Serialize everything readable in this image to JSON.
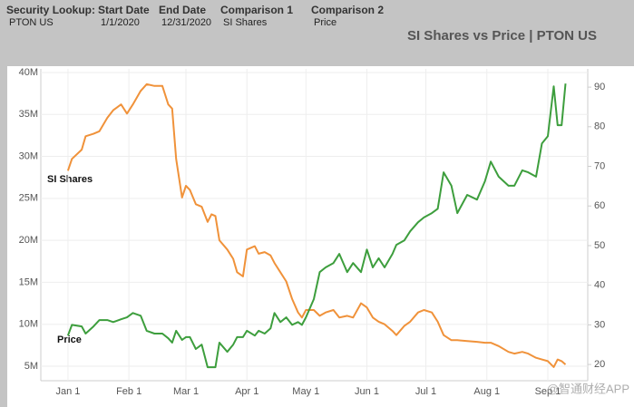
{
  "header": {
    "fields": [
      {
        "label": "Security Lookup:",
        "value": "PTON US"
      },
      {
        "label": "Start Date",
        "value": "1/1/2020"
      },
      {
        "label": "End Date",
        "value": "12/31/2020"
      },
      {
        "label": "Comparison 1",
        "value": "SI Shares"
      },
      {
        "label": "Comparison 2",
        "value": "Price"
      }
    ]
  },
  "chart_data": {
    "type": "line",
    "title": "SI Shares vs Price | PTON US",
    "annotations": [
      "SI Shares",
      "Price"
    ],
    "watermark": "@智通财经APP",
    "grid": true,
    "x": [
      0,
      2,
      7,
      9,
      13,
      16,
      20,
      23,
      27,
      30,
      33,
      37,
      40,
      44,
      48,
      51,
      53,
      55,
      58,
      60,
      62,
      65,
      68,
      71,
      73,
      75,
      77,
      81,
      84,
      86,
      89,
      91,
      95,
      97,
      100,
      103,
      105,
      108,
      111,
      114,
      117,
      119,
      121,
      125,
      128,
      131,
      135,
      138,
      142,
      145,
      149,
      152,
      155,
      158,
      161,
      165,
      167,
      171,
      174,
      178,
      181,
      185,
      188,
      191,
      195,
      198,
      203,
      208,
      212,
      215,
      219,
      224,
      227,
      231,
      234,
      238,
      241,
      244,
      247,
      249,
      251,
      253
    ],
    "xlim": [
      -13.8,
      264.3
    ],
    "xticks": [
      {
        "value": 0,
        "label": "Jan 1"
      },
      {
        "value": 31,
        "label": "Feb 1"
      },
      {
        "value": 60,
        "label": "Mar 1"
      },
      {
        "value": 91,
        "label": "Apr 1"
      },
      {
        "value": 121,
        "label": "May 1"
      },
      {
        "value": 152,
        "label": "Jun 1"
      },
      {
        "value": 182,
        "label": "Jul 1"
      },
      {
        "value": 213,
        "label": "Aug 1"
      },
      {
        "value": 244,
        "label": "Sep 1"
      }
    ],
    "ylim": [
      3.27,
      40.43
    ],
    "yticks": [
      {
        "value": 5,
        "label": "5M"
      },
      {
        "value": 10,
        "label": "10M"
      },
      {
        "value": 15,
        "label": "15M"
      },
      {
        "value": 20,
        "label": "20M"
      },
      {
        "value": 25,
        "label": "25M"
      },
      {
        "value": 30,
        "label": "30M"
      },
      {
        "value": 35,
        "label": "35M"
      },
      {
        "value": 40,
        "label": "40M"
      }
    ],
    "y2lim": [
      15.9,
      94.6
    ],
    "y2ticks": [
      20,
      30,
      40,
      50,
      60,
      70,
      80,
      90
    ],
    "series": [
      {
        "name": "SI Shares",
        "color": "#f0923a",
        "axis": "y",
        "values": [
          28.3,
          29.7,
          30.8,
          32.4,
          32.7,
          33,
          34.6,
          35.5,
          36.2,
          35.1,
          36.2,
          37.8,
          38.6,
          38.4,
          38.4,
          36.2,
          35.7,
          29.7,
          25.1,
          26.5,
          26,
          24.3,
          24,
          22.2,
          23.1,
          22.9,
          20,
          18.9,
          17.8,
          16.2,
          15.7,
          18.9,
          19.3,
          18.4,
          18.6,
          18.2,
          17.3,
          16.2,
          15.1,
          13,
          11.4,
          10.8,
          11.7,
          11.7,
          11,
          11.4,
          11.7,
          10.8,
          11,
          10.8,
          12.5,
          12,
          10.8,
          10.3,
          10,
          9.2,
          8.7,
          9.8,
          10.3,
          11.4,
          11.7,
          11.4,
          10.3,
          8.7,
          8.1,
          8.1,
          8,
          7.9,
          7.8,
          7.8,
          7.4,
          6.7,
          6.5,
          6.7,
          6.5,
          6,
          5.8,
          5.6,
          4.9,
          5.8,
          5.6,
          5.2
        ]
      },
      {
        "name": "Price",
        "color": "#3d9e3d",
        "axis": "y2",
        "values": [
          27.3,
          30,
          29.6,
          27.8,
          29.6,
          31.2,
          31.2,
          30.7,
          31.4,
          31.9,
          33,
          32.3,
          28.5,
          27.8,
          27.8,
          26.6,
          25.5,
          28.5,
          26.2,
          26.9,
          26.9,
          23.9,
          25,
          19.3,
          19.3,
          19.3,
          25.5,
          23.2,
          25,
          26.9,
          26.9,
          28.5,
          27.3,
          28.5,
          27.8,
          29.1,
          33,
          30.7,
          31.9,
          30,
          30.7,
          30,
          31.9,
          36.5,
          43.3,
          44.5,
          45.6,
          47.9,
          43.3,
          45.6,
          43.3,
          49,
          44.5,
          46.8,
          44.5,
          47.9,
          50.2,
          51.3,
          53.6,
          55.9,
          57.1,
          58.2,
          59.3,
          68.5,
          65.1,
          58.2,
          62.8,
          61.6,
          66.2,
          71.2,
          67.4,
          65.1,
          65.1,
          69,
          68.5,
          67.4,
          75.8,
          77.6,
          90.2,
          80.4,
          80.4,
          90.9
        ]
      }
    ]
  }
}
